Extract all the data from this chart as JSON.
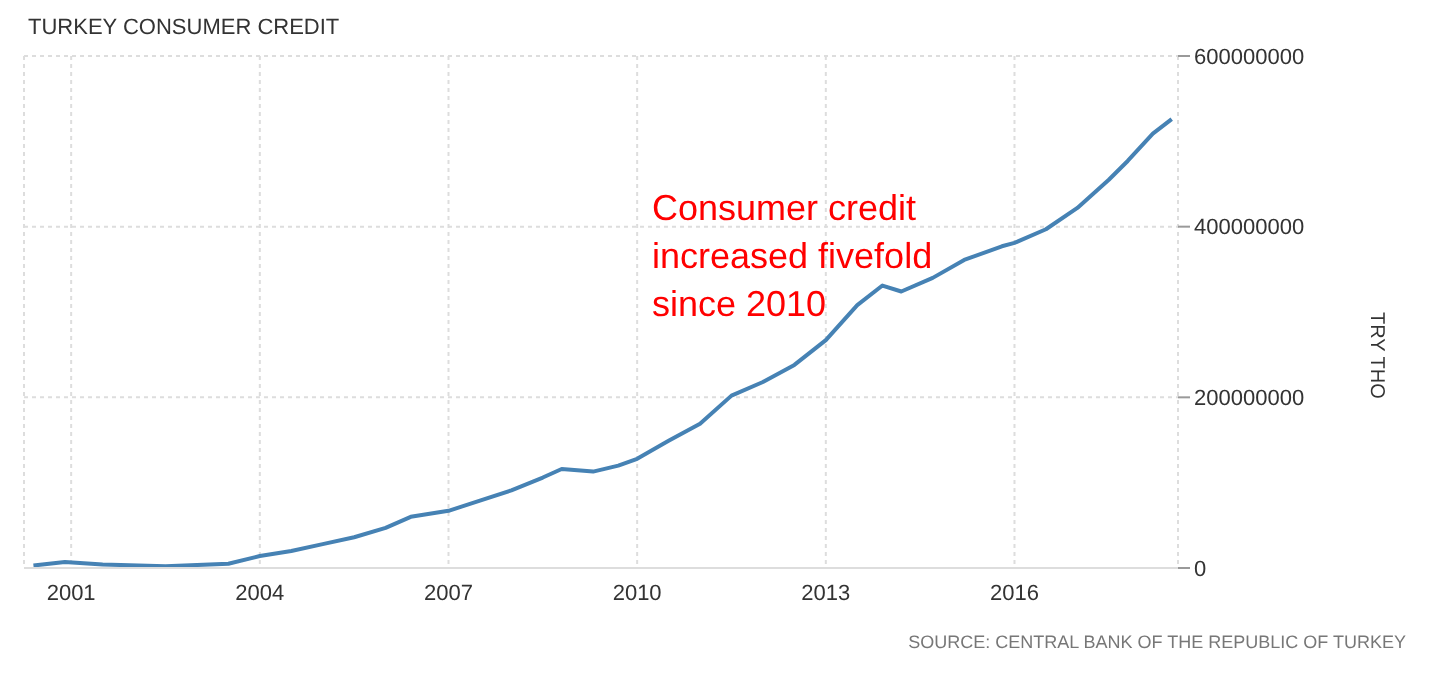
{
  "chart_data": {
    "type": "line",
    "title": "TURKEY CONSUMER CREDIT",
    "ylabel": "TRY THO",
    "annotations": [
      "Consumer credit increased fivefold since 2010",
      "SOURCE: CENTRAL BANK OF THE REPUBLIC OF TURKEY"
    ],
    "x": [
      2000.4,
      2000.9,
      2001.5,
      2002.5,
      2003.5,
      2004.0,
      2004.5,
      2005.0,
      2005.5,
      2006.0,
      2006.4,
      2007.0,
      2007.5,
      2008.0,
      2008.5,
      2008.8,
      2009.3,
      2009.7,
      2010.0,
      2010.5,
      2011.0,
      2011.5,
      2012.0,
      2012.5,
      2013.0,
      2013.5,
      2013.9,
      2014.2,
      2014.7,
      2015.2,
      2015.8,
      2016.0,
      2016.5,
      2017.0,
      2017.5,
      2017.8,
      2018.2,
      2018.5
    ],
    "series": [
      {
        "color": "#4682b4",
        "values": [
          3000000,
          7000000,
          4000000,
          2000000,
          5000000,
          14000000,
          20000000,
          28000000,
          36000000,
          47000000,
          60000000,
          67000000,
          79000000,
          91000000,
          106000000,
          116000000,
          113000000,
          120000000,
          128000000,
          149000000,
          169000000,
          202000000,
          218000000,
          238000000,
          267000000,
          308000000,
          331000000,
          324000000,
          340000000,
          361000000,
          377000000,
          381000000,
          397000000,
          422000000,
          455000000,
          477000000,
          509000000,
          526000000
        ]
      }
    ],
    "xlim": [
      2000.25,
      2018.6
    ],
    "xticks": [
      2001,
      2004,
      2007,
      2010,
      2013,
      2016
    ],
    "ylim": [
      0,
      600000000
    ],
    "yticks": [
      0,
      200000000,
      400000000,
      600000000
    ],
    "grid": true,
    "legend": false,
    "marker": "none",
    "line_style": "solid"
  }
}
